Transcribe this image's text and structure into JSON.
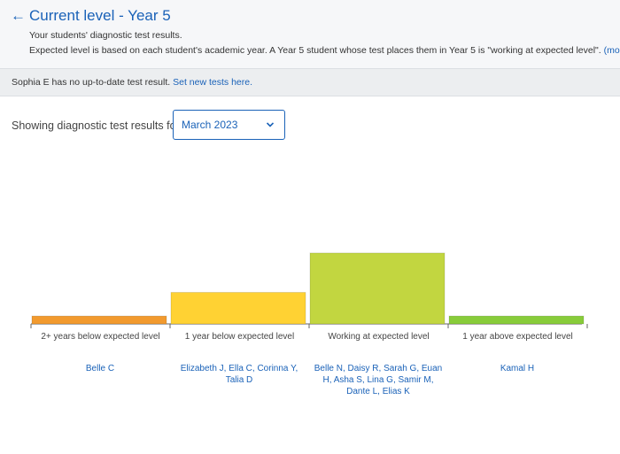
{
  "header": {
    "title": "Current level - Year 5",
    "subtitle": "Your students' diagnostic test results.",
    "explanation": "Expected level is based on each student's academic year. A Year 5 student whose test places them in Year 5 is \"working at expected level\".",
    "more_link": "(more...)"
  },
  "notice": {
    "text": "Sophia E has no up-to-date test result.",
    "link": "Set new tests here."
  },
  "filter": {
    "label": "Showing diagnostic test results for",
    "selected": "March 2023"
  },
  "chart_data": {
    "type": "bar",
    "categories": [
      "2+ years below expected level",
      "1 year below expected level",
      "Working at expected level",
      "1 year above expected level"
    ],
    "values": [
      1,
      4,
      9,
      1
    ],
    "colors": [
      "#f29a2e",
      "#ffd233",
      "#c2d640",
      "#88cc3a"
    ],
    "students": [
      "Belle C",
      "Elizabeth J, Ella C, Corinna Y, Talia D",
      "Belle N, Daisy R, Sarah G, Euan H, Asha S, Lina G, Samir M, Dante L, Elias K",
      "Kamal H"
    ]
  }
}
